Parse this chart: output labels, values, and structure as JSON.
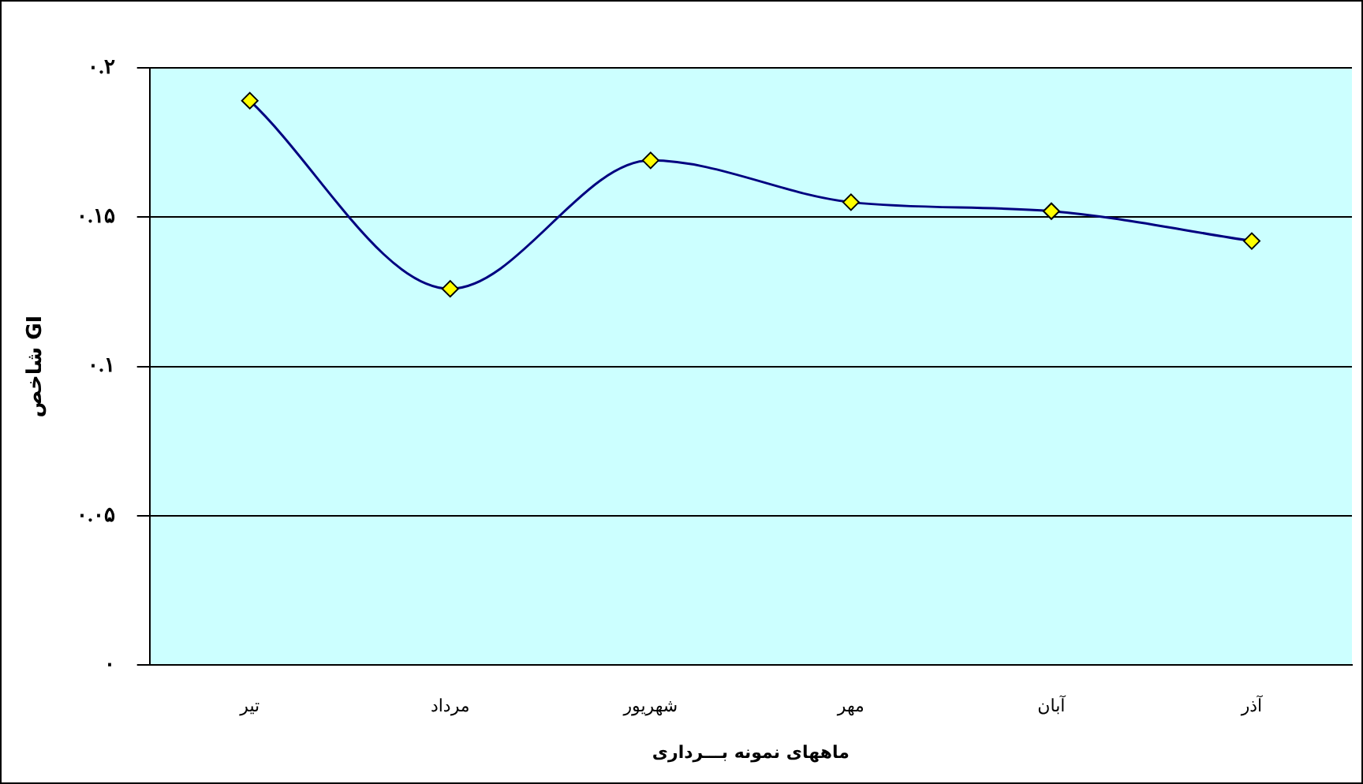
{
  "chart_data": {
    "type": "line",
    "xlabel": "ماههای نمونه بـــرداری",
    "ylabel": "شاخص GI",
    "categories": [
      "تیر",
      "مرداد",
      "شهریور",
      "مهر",
      "آبان",
      "آذر"
    ],
    "series": [
      {
        "color": "#000080",
        "values": [
          0.189,
          0.126,
          0.169,
          0.155,
          0.152,
          0.142
        ]
      }
    ],
    "ylim": [
      0,
      0.2
    ],
    "yticks": [
      {
        "value": 0,
        "label": "۰"
      },
      {
        "value": 0.05,
        "label": "۰.۰۵"
      },
      {
        "value": 0.1,
        "label": "۰.۱"
      },
      {
        "value": 0.15,
        "label": "۰.۱۵"
      },
      {
        "value": 0.2,
        "label": "۰.۲"
      }
    ],
    "grid": "y",
    "legend": false,
    "marker": "diamond",
    "line_style": "solid"
  }
}
